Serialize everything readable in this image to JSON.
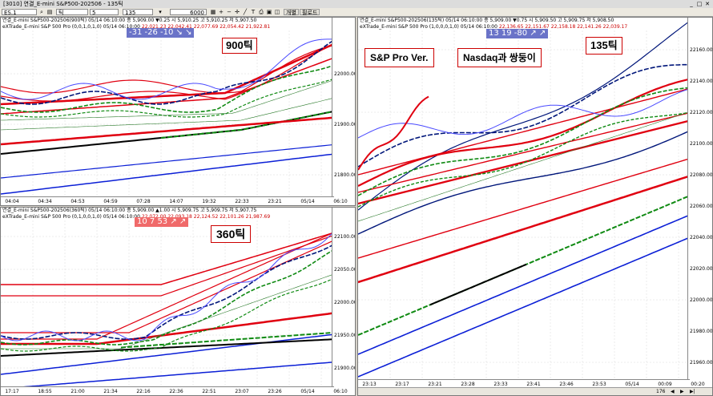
{
  "window": {
    "title": "[3010] 연결_E-mini S&P500-202506 - 135틱",
    "controls": [
      "_",
      "□",
      "✕"
    ]
  },
  "toolbar": {
    "symbol": "ES.1",
    "type": "틱",
    "interval": "5",
    "tick_value": "135",
    "count": "6000",
    "btn_a": "개별",
    "btn_b": "필로드"
  },
  "pane_top_left": {
    "header1": "연결_E-mini S&P500-202506(900틱) 05/14 06:10:00  종 5,909.00 ▼0.25  시 5,910.25 고 5,910.25 저 5,907.50",
    "header2": "eXTrade_E-mini S&P 500 Pro (0,0,1,0,1,0) 05/14 06:10:00",
    "header2_values": "22,021.23  22,042.41  22,077.69  22,054.42  21,922.81",
    "y_labels": [
      "22000.00",
      "21900.00",
      "21800.00"
    ],
    "x_labels": [
      "04:04",
      "04:34",
      "04:53",
      "04:59",
      "07:28",
      "14:07",
      "19:32",
      "22:33",
      "23:21",
      "05/14",
      "06:10"
    ],
    "trend_box": "-31   -26   -10   ↘ ↘",
    "note": "900틱"
  },
  "pane_bottom_left": {
    "header1": "연결_E-mini S&P500-202506(360틱) 05/14 06:10:00  종 5,909.00 ▲1.00  시 5,909.75 고 5,909.75 저 5,907.75",
    "header2": "eXTrade_E-mini S&P 500 Pro (0,1,0,0,1,0) 05/14 06:10:00",
    "header2_values": "22,072.00  22,093.18  22,124.52  22,101.26  21,987.69",
    "y_labels": [
      "22100.00",
      "22050.00",
      "22000.00",
      "21950.00",
      "21900.00"
    ],
    "x_labels": [
      "17:17",
      "18:55",
      "21:00",
      "21:34",
      "22:16",
      "22:36",
      "22:51",
      "23:07",
      "23:26",
      "05/14",
      "06:10"
    ],
    "trend_box": "10   7   53   ↗ ↗",
    "note": "360틱"
  },
  "pane_right": {
    "header1": "연결_E-mini S&P500-202506(135틱) 05/14 06:10:00  종 5,909.00 ▼0.75  시 5,909.50 고 5,909.75 저 5,908.50",
    "header2": "eXTrade_E-mini S&P 500 Pro (1,0,0,0,1,0) 05/14 06:10:00",
    "header2_values": "22,136.65  22,151.67  22,158.18  22,141.26  22,039.17",
    "y_labels": [
      "22160.00",
      "22140.00",
      "22120.00",
      "22100.00",
      "22080.00",
      "22060.00",
      "22040.00",
      "22020.00",
      "22000.00",
      "21980.00",
      "21960.00"
    ],
    "x_labels": [
      "23:13",
      "23:17",
      "23:21",
      "23:28",
      "23:33",
      "23:41",
      "23:46",
      "23:53",
      "05/14",
      "00:09",
      "00:20"
    ],
    "trend_box": "13   19   -80   ↗ ↗",
    "note_tick": "135틱",
    "note_sp": "S&P Pro Ver.",
    "note_nasdaq": "Nasdaq과 쌍둥이",
    "bottom_count": "176"
  },
  "colors": {
    "red": "#e00010",
    "blue": "#0b1fd6",
    "green": "#0f8a12",
    "navy": "#00167a"
  }
}
